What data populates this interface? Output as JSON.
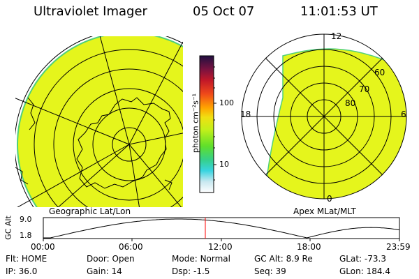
{
  "header": {
    "instrument": "Ultraviolet Imager",
    "date": "05 Oct 07",
    "time": "11:01:53 UT"
  },
  "left_panel": {
    "label": "Geographic Lat/Lon"
  },
  "right_panel": {
    "label": "Apex MLat/MLT",
    "mlt_labels": {
      "top": "12",
      "left": "18",
      "right": "6",
      "bottom": "0"
    },
    "lat_labels": [
      "60",
      "70",
      "80"
    ]
  },
  "colorbar": {
    "unit_label": "photon cm⁻²s⁻¹",
    "tick_labels": [
      "100",
      "10"
    ]
  },
  "altitude_plot": {
    "axis_label": "GC Alt",
    "y_ticks": [
      "9.0",
      "1.8"
    ],
    "x_ticks": [
      "00:00",
      "06:00",
      "12:00",
      "18:00",
      "23:59"
    ],
    "marker_time": "11:01:53"
  },
  "footer": {
    "row1": [
      {
        "key": "Flt:",
        "value": "HOME"
      },
      {
        "key": "Door:",
        "value": "Open"
      },
      {
        "key": "Mode:",
        "value": "Normal"
      },
      {
        "key": "GC Alt:",
        "value": "8.9 Re"
      },
      {
        "key": "GLat:",
        "value": "-73.3"
      }
    ],
    "row2": [
      {
        "key": "IP:",
        "value": "36.0"
      },
      {
        "key": "Gain:",
        "value": "14"
      },
      {
        "key": "Dsp:",
        "value": "-1.5"
      },
      {
        "key": "Seq:",
        "value": "39"
      },
      {
        "key": "GLon:",
        "value": "184.4"
      }
    ]
  },
  "colors": {
    "image_fill": "#e5f51c",
    "edge": "#4fd07a"
  }
}
